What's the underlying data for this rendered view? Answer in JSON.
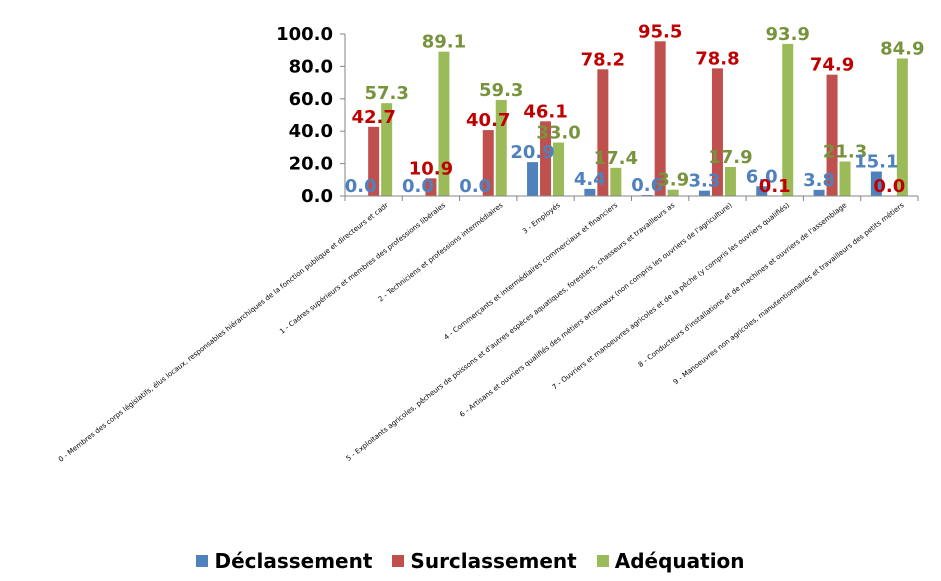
{
  "chart_data": {
    "type": "bar",
    "categories": [
      "0 - Membres des corps législatifs, élus locaux, responsables hiérarchiques de la fonction publique et directeurs et cadr",
      "1 - Cadres supérieurs et membres des professions libérales",
      "2 - Techniciens et professions intermédiaires",
      "3 - Employés",
      "4 - Commerçants et intermédiaires commerciaux et financiers",
      "5 - Exploitants agricoles, pêcheurs de poissons et d'autres espèces aquatiques, forestiers, chasseurs et travailleurs as",
      "6 - Artisans et ouvriers qualifiés des métiers artisanaux (non compris les ouvriers de l'agriculture)",
      "7 - Ouvriers et manoeuvres agricoles et de la pêche (y compris les ouvriers qualifiés)",
      "8 - Conducteurs d'installations et de machines et ouvriers de l'assemblage",
      "9 - Manoeuvres non agricoles, manutentionnaires et travailleurs des petits métiers"
    ],
    "series": [
      {
        "name": "Déclassement",
        "color": "#4F81BD",
        "values": [
          0.0,
          0.0,
          0.0,
          20.9,
          4.4,
          0.6,
          3.3,
          6.0,
          3.8,
          15.1
        ],
        "labels": [
          "0.0",
          "0.0",
          "0.0",
          "20.9",
          "4.4",
          "0.6",
          "3.3",
          "6.0",
          "3.8",
          "15.1"
        ]
      },
      {
        "name": "Surclassement",
        "color": "#C0504D",
        "values": [
          42.7,
          10.9,
          40.7,
          46.1,
          78.2,
          95.5,
          78.8,
          0.1,
          74.9,
          0.0
        ],
        "labels": [
          "42.7",
          "10.9",
          "40.7",
          "46.1",
          "78.2",
          "95.5",
          "78.8",
          "0.1",
          "74.9",
          "0.0"
        ]
      },
      {
        "name": "Adéquation",
        "color": "#9BBB59",
        "values": [
          57.3,
          89.1,
          59.3,
          33.0,
          17.4,
          3.9,
          17.9,
          93.9,
          21.3,
          84.9
        ],
        "labels": [
          "57.3",
          "89.1",
          "59.3",
          "33.0",
          "17.4",
          "3.9",
          "17.9",
          "93.9",
          "21.3",
          "84.9"
        ]
      }
    ],
    "yticks": [
      "0.0",
      "20.0",
      "40.0",
      "60.0",
      "80.0",
      "100.0"
    ],
    "ylim": [
      0,
      100
    ],
    "legend_position": "bottom",
    "grid": false
  }
}
